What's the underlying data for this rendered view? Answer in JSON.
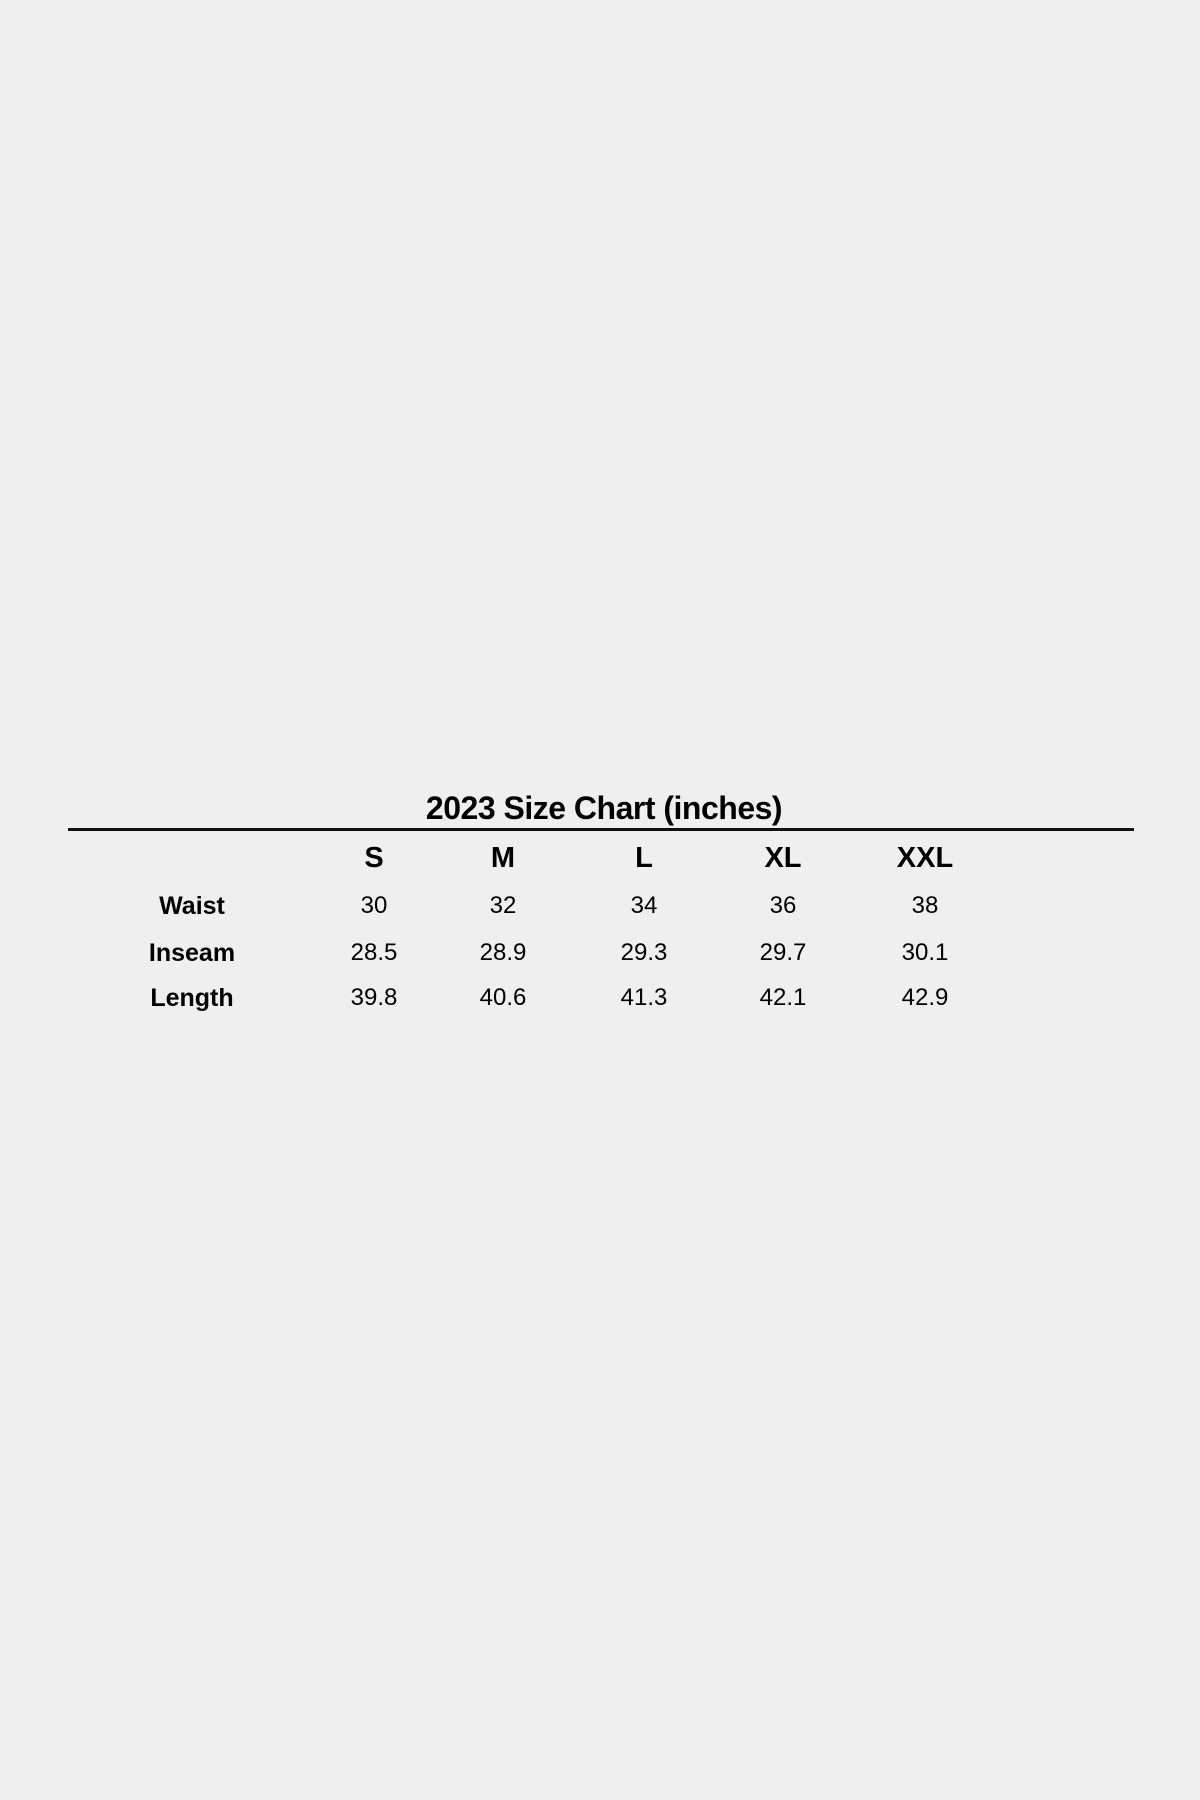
{
  "title": "2023 Size Chart (inches)",
  "columns": [
    "S",
    "M",
    "L",
    "XL",
    "XXL"
  ],
  "rows": [
    {
      "label": "Waist",
      "values": [
        "30",
        "32",
        "34",
        "36",
        "38"
      ]
    },
    {
      "label": "Inseam",
      "values": [
        "28.5",
        "28.9",
        "29.3",
        "29.7",
        "30.1"
      ]
    },
    {
      "label": "Length",
      "values": [
        "39.8",
        "40.6",
        "41.3",
        "42.1",
        "42.9"
      ]
    }
  ],
  "colors": {
    "background": "#efefef",
    "text": "#000000"
  }
}
